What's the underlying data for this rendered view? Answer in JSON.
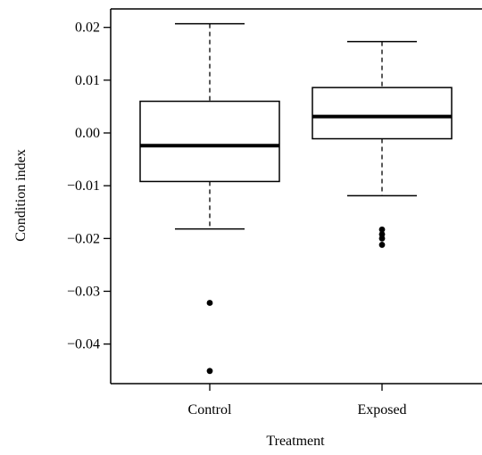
{
  "chart_data": {
    "type": "boxplot",
    "xlabel": "Treatment",
    "ylabel": "Condition index",
    "categories": [
      "Control",
      "Exposed"
    ],
    "ylim": [
      -0.0475,
      0.0235
    ],
    "y_ticks": [
      0.02,
      0.01,
      0.0,
      -0.01,
      -0.02,
      -0.03,
      -0.04
    ],
    "y_tick_labels": [
      "0.02",
      "0.01",
      "0.00",
      "−0.01",
      "−0.02",
      "−0.03",
      "−0.04"
    ],
    "grid": false,
    "legend": "none",
    "boxes": [
      {
        "category": "Control",
        "whisker_low": -0.0182,
        "q1": -0.0092,
        "median": -0.0024,
        "q3": 0.006,
        "whisker_high": 0.0207,
        "outliers": [
          -0.0322,
          -0.0451
        ]
      },
      {
        "category": "Exposed",
        "whisker_low": -0.0119,
        "q1": -0.0011,
        "median": 0.0031,
        "q3": 0.0086,
        "whisker_high": 0.0173,
        "outliers": [
          -0.0183,
          -0.0192,
          -0.02,
          -0.0212
        ]
      }
    ]
  }
}
